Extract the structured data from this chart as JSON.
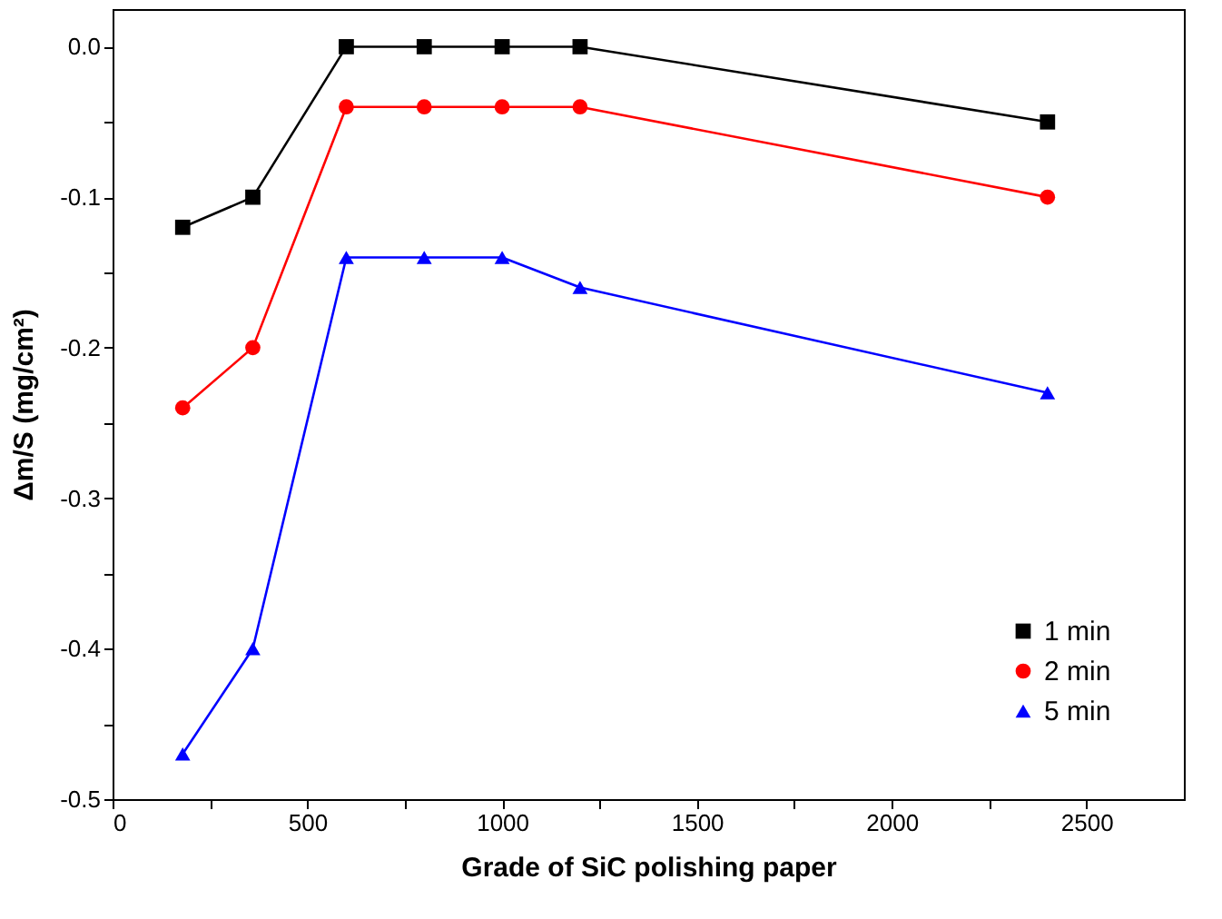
{
  "chart_data": {
    "type": "line",
    "xlabel": "Grade of SiC polishing paper",
    "ylabel": "Δm/S (mg/cm²)",
    "x": [
      180,
      360,
      600,
      800,
      1000,
      1200,
      2400
    ],
    "series": [
      {
        "name": "1 min",
        "color": "#000000",
        "marker": "square",
        "values": [
          -0.12,
          -0.1,
          0,
          0,
          0,
          0,
          -0.05
        ]
      },
      {
        "name": "2 min",
        "color": "#ff0000",
        "marker": "circle",
        "values": [
          -0.24,
          -0.2,
          -0.04,
          -0.04,
          -0.04,
          -0.04,
          -0.1
        ]
      },
      {
        "name": "5 min",
        "color": "#0000ff",
        "marker": "triangle",
        "values": [
          -0.47,
          -0.4,
          -0.14,
          -0.14,
          -0.14,
          -0.16,
          -0.23
        ]
      }
    ],
    "xlim": [
      0,
      2750
    ],
    "xticks": [
      0,
      {
        "value": 250,
        "label": null
      },
      500,
      {
        "value": 750,
        "label": null
      },
      1000,
      {
        "value": 1250,
        "label": null
      },
      1500,
      {
        "value": 1750,
        "label": null
      },
      2000,
      {
        "value": 2250,
        "label": null
      },
      2500
    ],
    "ylim": [
      -0.5,
      0.025
    ],
    "yticks": [
      {
        "value": -0.5,
        "label": "-0.5"
      },
      {
        "value": -0.45,
        "label": null
      },
      {
        "value": -0.4,
        "label": "-0.4"
      },
      {
        "value": -0.35,
        "label": null
      },
      {
        "value": -0.3,
        "label": "-0.3"
      },
      {
        "value": -0.25,
        "label": null
      },
      {
        "value": -0.2,
        "label": "-0.2"
      },
      {
        "value": -0.15,
        "label": null
      },
      {
        "value": -0.1,
        "label": "-0.1"
      },
      {
        "value": -0.05,
        "label": null
      },
      {
        "value": 0,
        "label": "0.0"
      }
    ],
    "grid": false,
    "legend": "bottom right",
    "line_style": "solid"
  }
}
